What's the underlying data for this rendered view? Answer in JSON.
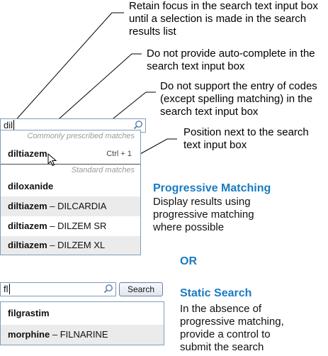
{
  "callouts": {
    "focus": "Retain focus in the search text input box until a selection is made in the search results list",
    "autocomplete": "Do not provide auto-complete in the search text input box",
    "codes": "Do not support the entry of codes (except spelling matching) in the search text input box",
    "position": "Position next to the search text input box"
  },
  "progressive": {
    "query": "dil",
    "common_label": "Commonly prescribed matches",
    "standard_label": "Standard matches",
    "top_item": {
      "name": "diltiazem",
      "shortcut": "Ctrl + 1"
    },
    "items": [
      {
        "name": "diloxanide",
        "brand": ""
      },
      {
        "name": "diltiazem",
        "brand": "DILCARDIA"
      },
      {
        "name": "diltiazem",
        "brand": "DILZEM SR"
      },
      {
        "name": "diltiazem",
        "brand": "DILZEM XL"
      }
    ],
    "heading": "Progressive Matching",
    "description": "Display results using progressive matching where possible"
  },
  "or_label": "OR",
  "static": {
    "query": "fl",
    "button_label": "Search",
    "items": [
      {
        "name": "filgrastim",
        "brand": ""
      },
      {
        "name": "morphine",
        "brand": "FILNARINE"
      }
    ],
    "heading": "Static Search",
    "description": "In the absence of progressive matching, provide a control to submit the search"
  },
  "dash": " – ",
  "icons": [
    "magnifier-icon",
    "mouse-cursor-icon"
  ]
}
